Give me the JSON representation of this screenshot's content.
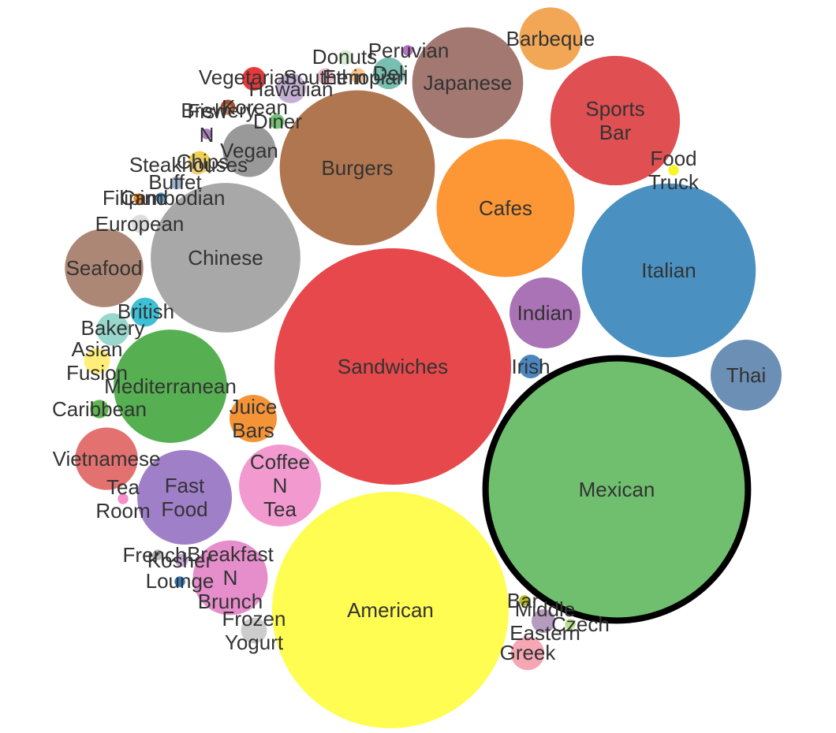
{
  "chart_data": {
    "type": "bubble",
    "title": "",
    "selected": "Mexican",
    "bubbles": [
      {
        "name": "Sandwiches",
        "value": 100,
        "color": "#e6484b"
      },
      {
        "name": "Mexican",
        "value": 123,
        "color": "#70bf6e"
      },
      {
        "name": "American",
        "value": 100,
        "color": "#fffc52"
      },
      {
        "name": "Italian",
        "value": 54,
        "color": "#4a91c2"
      },
      {
        "name": "Burgers",
        "value": 43,
        "color": "#b07650"
      },
      {
        "name": "Chinese",
        "value": 40,
        "color": "#a8a8a8"
      },
      {
        "name": "Cafes",
        "value": 34,
        "color": "#fd9735"
      },
      {
        "name": "Japanese",
        "value": 22,
        "color": "#a27871"
      },
      {
        "name": "Sports Bar",
        "value": 30,
        "color": "#e04f51"
      },
      {
        "name": "Mediterranean",
        "value": 23,
        "color": "#56b052"
      },
      {
        "name": "Fast Food",
        "value": 16,
        "color": "#a07fc9"
      },
      {
        "name": "Coffee N Tea",
        "value": 12,
        "color": "#f29ad0"
      },
      {
        "name": "Seafood",
        "value": 11,
        "color": "#ad8775"
      },
      {
        "name": "Indian",
        "value": 9,
        "color": "#a973b5"
      },
      {
        "name": "Breakfast N Brunch",
        "value": 10,
        "color": "#e68dcc"
      },
      {
        "name": "Thai",
        "value": 9,
        "color": "#6b8fb5"
      },
      {
        "name": "Vietnamese",
        "value": 7,
        "color": "#e37170"
      },
      {
        "name": "Barbeque",
        "value": 7,
        "color": "#f2a756"
      },
      {
        "name": "Juice Bars",
        "value": 4,
        "color": "#f59437"
      },
      {
        "name": "Vegan",
        "value": 5,
        "color": "#999999"
      },
      {
        "name": "Greek",
        "value": 2,
        "color": "#f7a6b4"
      },
      {
        "name": "Frozen Yogurt",
        "value": 1.2,
        "color": "#cccccc"
      },
      {
        "name": "Hawaiian",
        "value": 1.6,
        "color": "#c5b0d5"
      },
      {
        "name": "Deli",
        "value": 1.8,
        "color": "#77bfb0"
      },
      {
        "name": "Bakery",
        "value": 1.9,
        "color": "#98d7cc"
      },
      {
        "name": "British",
        "value": 1.5,
        "color": "#3dc0d6"
      },
      {
        "name": "Irish",
        "value": 1,
        "color": "#4b87be"
      },
      {
        "name": "Asian Fusion",
        "value": 1.2,
        "color": "#ffef7a"
      },
      {
        "name": "Middle Eastern",
        "value": 1,
        "color": "#b59bbd"
      },
      {
        "name": "Chips",
        "value": 0.9,
        "color": "#eed054"
      },
      {
        "name": "Vegetarian",
        "value": 1,
        "color": "#e63a3a"
      },
      {
        "name": "Caribbean",
        "value": 0.6,
        "color": "#5fb54f"
      },
      {
        "name": "European",
        "value": 0.6,
        "color": "#dddddd"
      },
      {
        "name": "Southern",
        "value": 0.5,
        "color": "#eab8c9"
      },
      {
        "name": "Donuts",
        "value": 0.4,
        "color": "#d6edd1"
      },
      {
        "name": "Ethiopian",
        "value": 0.4,
        "color": "#f9c28a"
      },
      {
        "name": "Korean",
        "value": 0.4,
        "color": "#a0522d"
      },
      {
        "name": "Diner",
        "value": 0.4,
        "color": "#74c476"
      },
      {
        "name": "Steakhouses",
        "value": 0.5,
        "color": "#f2d27a"
      },
      {
        "name": "Buffet",
        "value": 0.3,
        "color": "#9fb3d3"
      },
      {
        "name": "Kosher",
        "value": 0.3,
        "color": "#c9a9d9"
      },
      {
        "name": "Tea Room",
        "value": 0.2,
        "color": "#f78fc8"
      },
      {
        "name": "Food Truck",
        "value": 0.2,
        "color": "#f7f52a"
      },
      {
        "name": "Peruvian",
        "value": 0.2,
        "color": "#b573c4"
      },
      {
        "name": "Brewery",
        "value": 0.2,
        "color": "#c97f5b"
      },
      {
        "name": "Fish N",
        "value": 0.2,
        "color": "#a97fc0"
      },
      {
        "name": "Filipino",
        "value": 0.2,
        "color": "#f28a1e"
      },
      {
        "name": "Cambodian",
        "value": 0.2,
        "color": "#5f9ed1"
      },
      {
        "name": "French",
        "value": 0.2,
        "color": "#b9b9b9"
      },
      {
        "name": "Lounge",
        "value": 0.2,
        "color": "#2f7fbf"
      },
      {
        "name": "Bar",
        "value": 0.2,
        "color": "#bcbd22"
      },
      {
        "name": "Czech",
        "value": 0.2,
        "color": "#b8e08e"
      }
    ]
  }
}
